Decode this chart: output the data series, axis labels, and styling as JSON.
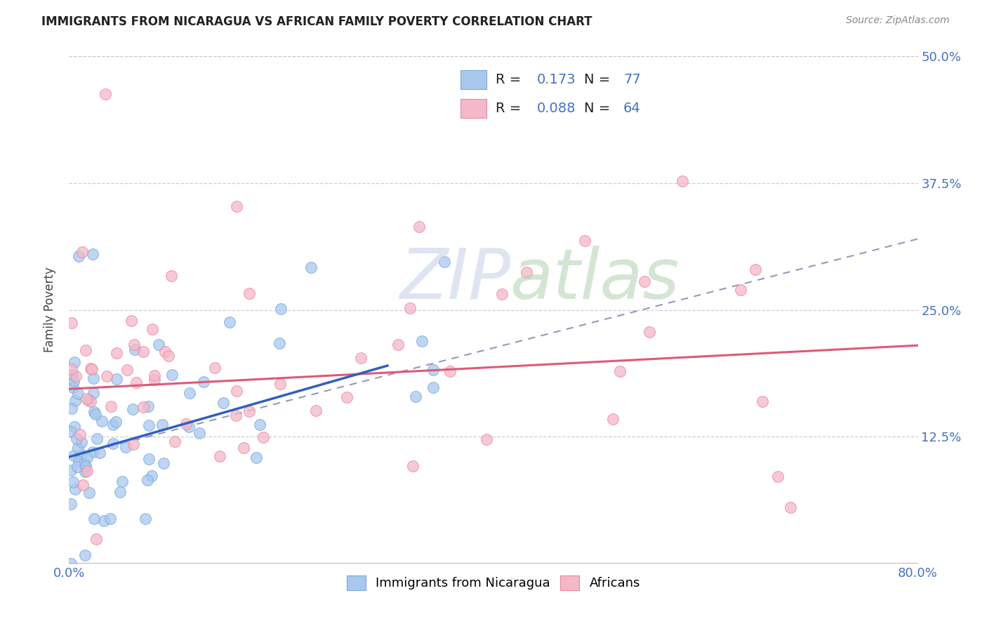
{
  "title": "IMMIGRANTS FROM NICARAGUA VS AFRICAN FAMILY POVERTY CORRELATION CHART",
  "source": "Source: ZipAtlas.com",
  "ylabel": "Family Poverty",
  "legend_label1": "Immigrants from Nicaragua",
  "legend_label2": "Africans",
  "R1": "0.173",
  "N1": "77",
  "R2": "0.088",
  "N2": "64",
  "color_blue": "#a8c8f0",
  "color_blue_edge": "#7aaad4",
  "color_pink": "#f5b8c8",
  "color_pink_edge": "#e888a0",
  "color_blue_text": "#4472c4",
  "color_dark_text": "#222222",
  "color_source": "#888888",
  "color_trendline_blue": "#3060c0",
  "color_trendline_pink": "#e05878",
  "color_trendline_dashed": "#9898b8",
  "background": "#ffffff",
  "grid_color": "#c8c8d8",
  "xlim": [
    0.0,
    0.8
  ],
  "ylim": [
    0.0,
    0.5
  ],
  "blue_line_x0": 0.0,
  "blue_line_y0": 0.105,
  "blue_line_x1": 0.3,
  "blue_line_y1": 0.195,
  "pink_line_x0": 0.0,
  "pink_line_y0": 0.172,
  "pink_line_x1": 0.8,
  "pink_line_y1": 0.215,
  "dashed_line_x0": 0.0,
  "dashed_line_y0": 0.105,
  "dashed_line_x1": 0.8,
  "dashed_line_y1": 0.32
}
